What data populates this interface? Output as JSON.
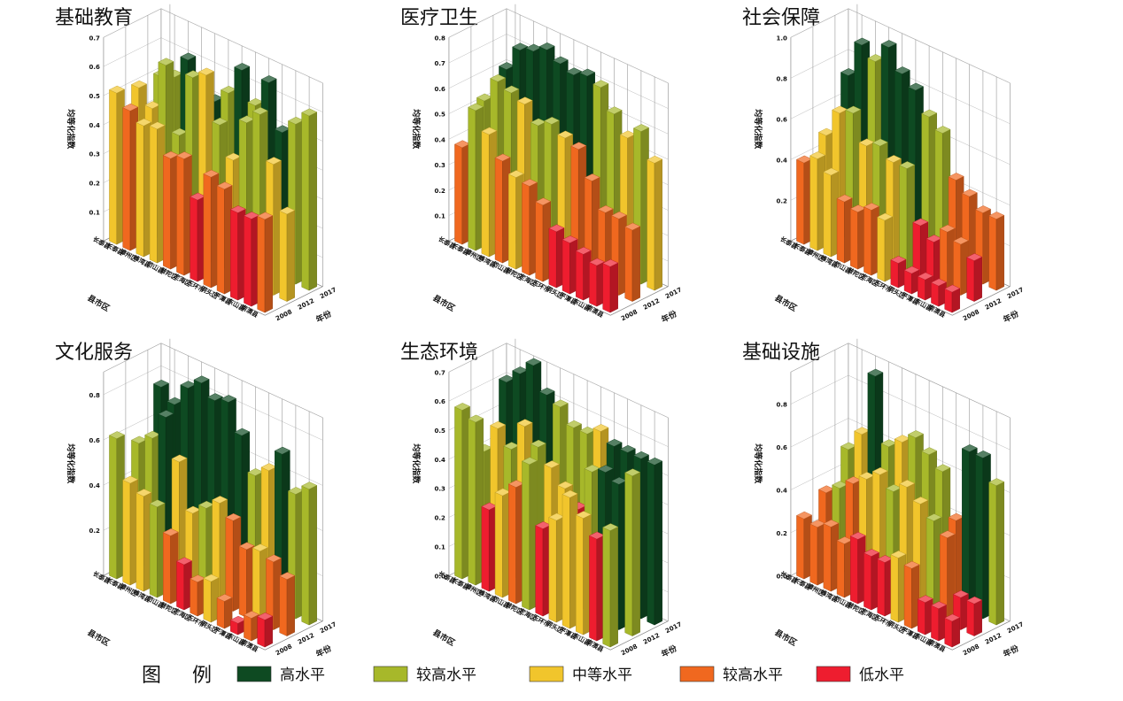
{
  "legend": {
    "title": "图  例",
    "items": [
      {
        "label": "高水平",
        "color": "#0e4a22"
      },
      {
        "label": "较高水平",
        "color": "#a7b82a"
      },
      {
        "label": "中等水平",
        "color": "#f1c52c"
      },
      {
        "label": "较高水平",
        "color": "#f0681f"
      },
      {
        "label": "低水平",
        "color": "#ee1d2f"
      }
    ]
  },
  "shared_axes": {
    "z_label": "均等化指数",
    "x_label": "县市区",
    "y_label": "年份",
    "districts": [
      "长泰县",
      "长泰县",
      "漳州区",
      "峰湾县",
      "岱山县",
      "普陀区",
      "定海区",
      "玉环市",
      "洞头区",
      "平潭县",
      "东山县",
      "南澳县"
    ],
    "years": [
      "2008",
      "2012",
      "2017"
    ]
  },
  "chart_data": [
    {
      "type": "bar3d",
      "title": "基础教育",
      "zticks": [
        "0.1",
        "0.2",
        "0.3",
        "0.4",
        "0.5",
        "0.6",
        "0.7"
      ],
      "zlim": [
        0,
        0.7
      ],
      "rows": [
        {
          "year": "2017",
          "values": [
            0.5,
            0.52,
            0.6,
            0.55,
            0.5,
            0.55,
            0.65,
            0.55,
            0.65,
            0.5,
            0.55,
            0.6
          ],
          "levels": [
            1,
            1,
            0,
            0,
            0,
            1,
            0,
            1,
            0,
            0,
            1,
            1
          ]
        },
        {
          "year": "2012",
          "values": [
            0.5,
            0.45,
            0.62,
            0.4,
            0.62,
            0.65,
            0.5,
            0.4,
            0.55,
            0.6,
            0.45,
            0.3
          ],
          "levels": [
            2,
            2,
            1,
            1,
            1,
            2,
            1,
            2,
            1,
            1,
            2,
            2
          ]
        },
        {
          "year": "2008",
          "values": [
            0.52,
            0.48,
            0.45,
            0.46,
            0.38,
            0.4,
            0.28,
            0.38,
            0.36,
            0.3,
            0.3,
            0.32
          ],
          "levels": [
            2,
            3,
            2,
            2,
            3,
            3,
            4,
            3,
            3,
            4,
            4,
            3
          ]
        }
      ]
    },
    {
      "type": "bar3d",
      "title": "医疗卫生",
      "zticks": [
        "0.1",
        "0.2",
        "0.3",
        "0.4",
        "0.5",
        "0.6",
        "0.7",
        "0.8"
      ],
      "zlim": [
        0,
        0.8
      ],
      "rows": [
        {
          "year": "2017",
          "values": [
            0.6,
            0.7,
            0.72,
            0.75,
            0.72,
            0.7,
            0.72,
            0.7,
            0.62,
            0.55,
            0.6,
            0.5
          ],
          "levels": [
            0,
            0,
            0,
            0,
            0,
            0,
            0,
            1,
            1,
            2,
            1,
            2
          ]
        },
        {
          "year": "2012",
          "values": [
            0.52,
            0.62,
            0.6,
            0.58,
            0.52,
            0.55,
            0.52,
            0.5,
            0.4,
            0.3,
            0.3,
            0.28
          ],
          "levels": [
            1,
            1,
            1,
            2,
            1,
            1,
            2,
            3,
            3,
            3,
            3,
            3
          ]
        },
        {
          "year": "2008",
          "values": [
            0.38,
            0.55,
            0.48,
            0.4,
            0.36,
            0.35,
            0.3,
            0.22,
            0.2,
            0.18,
            0.16,
            0.18
          ],
          "levels": [
            3,
            1,
            2,
            3,
            2,
            3,
            3,
            4,
            4,
            4,
            4,
            4
          ]
        }
      ]
    },
    {
      "type": "bar3d",
      "title": "社会保障",
      "zticks": [
        "0.2",
        "0.4",
        "0.6",
        "0.8",
        "1.0"
      ],
      "zlim": [
        0,
        1.0
      ],
      "rows": [
        {
          "year": "2017",
          "values": [
            0.72,
            0.9,
            0.85,
            0.95,
            0.85,
            0.8,
            0.7,
            0.65,
            0.45,
            0.4,
            0.35,
            0.35
          ],
          "levels": [
            0,
            0,
            1,
            0,
            0,
            0,
            1,
            1,
            3,
            3,
            3,
            3
          ]
        },
        {
          "year": "2012",
          "values": [
            0.48,
            0.62,
            0.65,
            0.52,
            0.55,
            0.5,
            0.5,
            0.25,
            0.2,
            0.28,
            0.25,
            0.2
          ],
          "levels": [
            2,
            2,
            1,
            2,
            1,
            2,
            1,
            4,
            4,
            3,
            3,
            4
          ]
        },
        {
          "year": "2008",
          "values": [
            0.4,
            0.45,
            0.4,
            0.3,
            0.28,
            0.32,
            0.3,
            0.12,
            0.1,
            0.1,
            0.1,
            0.1
          ],
          "levels": [
            3,
            2,
            2,
            3,
            3,
            3,
            2,
            4,
            4,
            4,
            4,
            4
          ]
        }
      ]
    },
    {
      "type": "bar3d",
      "title": "文化服务",
      "zticks": [
        "0.2",
        "0.4",
        "0.6",
        "0.8"
      ],
      "zlim": [
        0,
        0.9
      ],
      "rows": [
        {
          "year": "2017",
          "values": [
            0.75,
            0.7,
            0.8,
            0.85,
            0.8,
            0.82,
            0.7,
            0.55,
            0.6,
            0.7,
            0.55,
            0.6
          ],
          "levels": [
            0,
            0,
            0,
            0,
            0,
            0,
            0,
            1,
            2,
            0,
            1,
            1
          ]
        },
        {
          "year": "2012",
          "values": [
            0.55,
            0.6,
            0.72,
            0.55,
            0.35,
            0.4,
            0.45,
            0.4,
            0.3,
            0.32,
            0.3,
            0.25
          ],
          "levels": [
            1,
            1,
            0,
            2,
            2,
            1,
            2,
            3,
            3,
            2,
            3,
            3
          ]
        },
        {
          "year": "2008",
          "values": [
            0.62,
            0.45,
            0.42,
            0.4,
            0.3,
            0.2,
            0.15,
            0.18,
            0.12,
            0.05,
            0.1,
            0.12
          ],
          "levels": [
            1,
            2,
            2,
            1,
            3,
            4,
            3,
            2,
            3,
            4,
            3,
            4
          ]
        }
      ]
    },
    {
      "type": "bar3d",
      "title": "生态环境",
      "zticks": [
        "0.0",
        "0.1",
        "0.2",
        "0.3",
        "0.4",
        "0.5",
        "0.6",
        "0.7"
      ],
      "zlim": [
        0,
        0.7
      ],
      "rows": [
        {
          "year": "2017",
          "values": [
            0.6,
            0.65,
            0.7,
            0.62,
            0.6,
            0.55,
            0.55,
            0.58,
            0.55,
            0.55,
            0.55,
            0.55
          ],
          "levels": [
            0,
            0,
            0,
            0,
            1,
            1,
            1,
            2,
            0,
            0,
            0,
            0
          ]
        },
        {
          "year": "2012",
          "values": [
            0.4,
            0.5,
            0.45,
            0.55,
            0.5,
            0.45,
            0.4,
            0.35,
            0.5,
            0.52,
            0.5,
            0.55
          ],
          "levels": [
            1,
            2,
            1,
            2,
            1,
            2,
            2,
            4,
            1,
            0,
            0,
            1
          ]
        },
        {
          "year": "2008",
          "values": [
            0.58,
            0.56,
            0.28,
            0.35,
            0.4,
            0.5,
            0.3,
            0.35,
            0.45,
            0.4,
            0.35,
            0.4
          ],
          "levels": [
            1,
            1,
            4,
            2,
            3,
            1,
            4,
            2,
            2,
            2,
            4,
            1
          ]
        }
      ]
    },
    {
      "type": "bar3d",
      "title": "基础设施",
      "zticks": [
        "0.0",
        "0.2",
        "0.4",
        "0.6",
        "0.8"
      ],
      "zlim": [
        0,
        0.95
      ],
      "rows": [
        {
          "year": "2017",
          "values": [
            0.5,
            0.6,
            0.9,
            0.6,
            0.65,
            0.7,
            0.65,
            0.6,
            0.4,
            0.75,
            0.75,
            0.65
          ],
          "levels": [
            1,
            2,
            0,
            1,
            2,
            1,
            1,
            1,
            3,
            0,
            0,
            1
          ]
        },
        {
          "year": "2012",
          "values": [
            0.35,
            0.4,
            0.45,
            0.5,
            0.55,
            0.5,
            0.55,
            0.5,
            0.45,
            0.4,
            0.15,
            0.15
          ],
          "levels": [
            3,
            1,
            3,
            2,
            2,
            1,
            2,
            2,
            1,
            3,
            4,
            4
          ]
        },
        {
          "year": "2008",
          "values": [
            0.28,
            0.27,
            0.3,
            0.25,
            0.3,
            0.25,
            0.25,
            0.3,
            0.28,
            0.15,
            0.15,
            0.12
          ],
          "levels": [
            3,
            3,
            3,
            3,
            4,
            4,
            4,
            2,
            3,
            4,
            4,
            4
          ]
        }
      ]
    }
  ]
}
